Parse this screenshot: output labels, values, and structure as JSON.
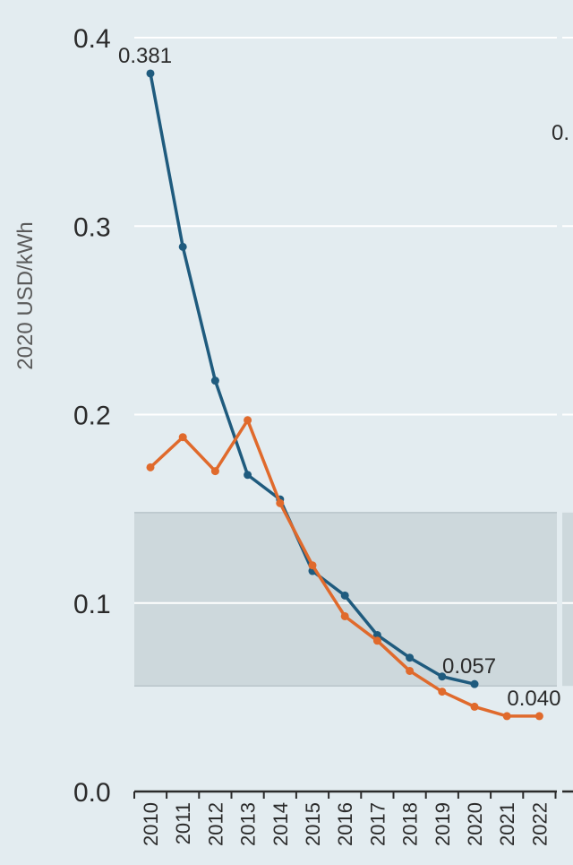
{
  "chart_data": {
    "type": "line",
    "title": "",
    "xlabel": "",
    "ylabel": "2020 USD/kWh",
    "x": [
      "2010",
      "2011",
      "2012",
      "2013",
      "2014",
      "2015",
      "2016",
      "2017",
      "2018",
      "2019",
      "2020",
      "2021",
      "2022"
    ],
    "ylim": [
      0,
      0.4
    ],
    "yticks": [
      "0.0",
      "0.1",
      "0.2",
      "0.3",
      "0.4"
    ],
    "grid": true,
    "band": {
      "from": 0.056,
      "to": 0.148,
      "color": "#cdd8dc"
    },
    "series": [
      {
        "color": "#1f5b7e",
        "values": [
          0.381,
          0.289,
          0.218,
          0.168,
          0.155,
          0.117,
          0.104,
          0.083,
          0.071,
          0.061,
          0.057,
          null,
          null
        ]
      },
      {
        "color": "#e06a2c",
        "values": [
          0.172,
          0.188,
          0.17,
          0.197,
          0.153,
          0.12,
          0.093,
          0.08,
          0.064,
          0.053,
          0.045,
          0.04,
          0.04
        ]
      }
    ],
    "data_labels": [
      {
        "text": "0.381",
        "x": "2010",
        "value": 0.381
      },
      {
        "text": "0.057",
        "x": "2020",
        "value": 0.057
      },
      {
        "text": "0.040",
        "x": "2022",
        "value": 0.04
      }
    ],
    "next_panel_label_fragment": "0."
  }
}
